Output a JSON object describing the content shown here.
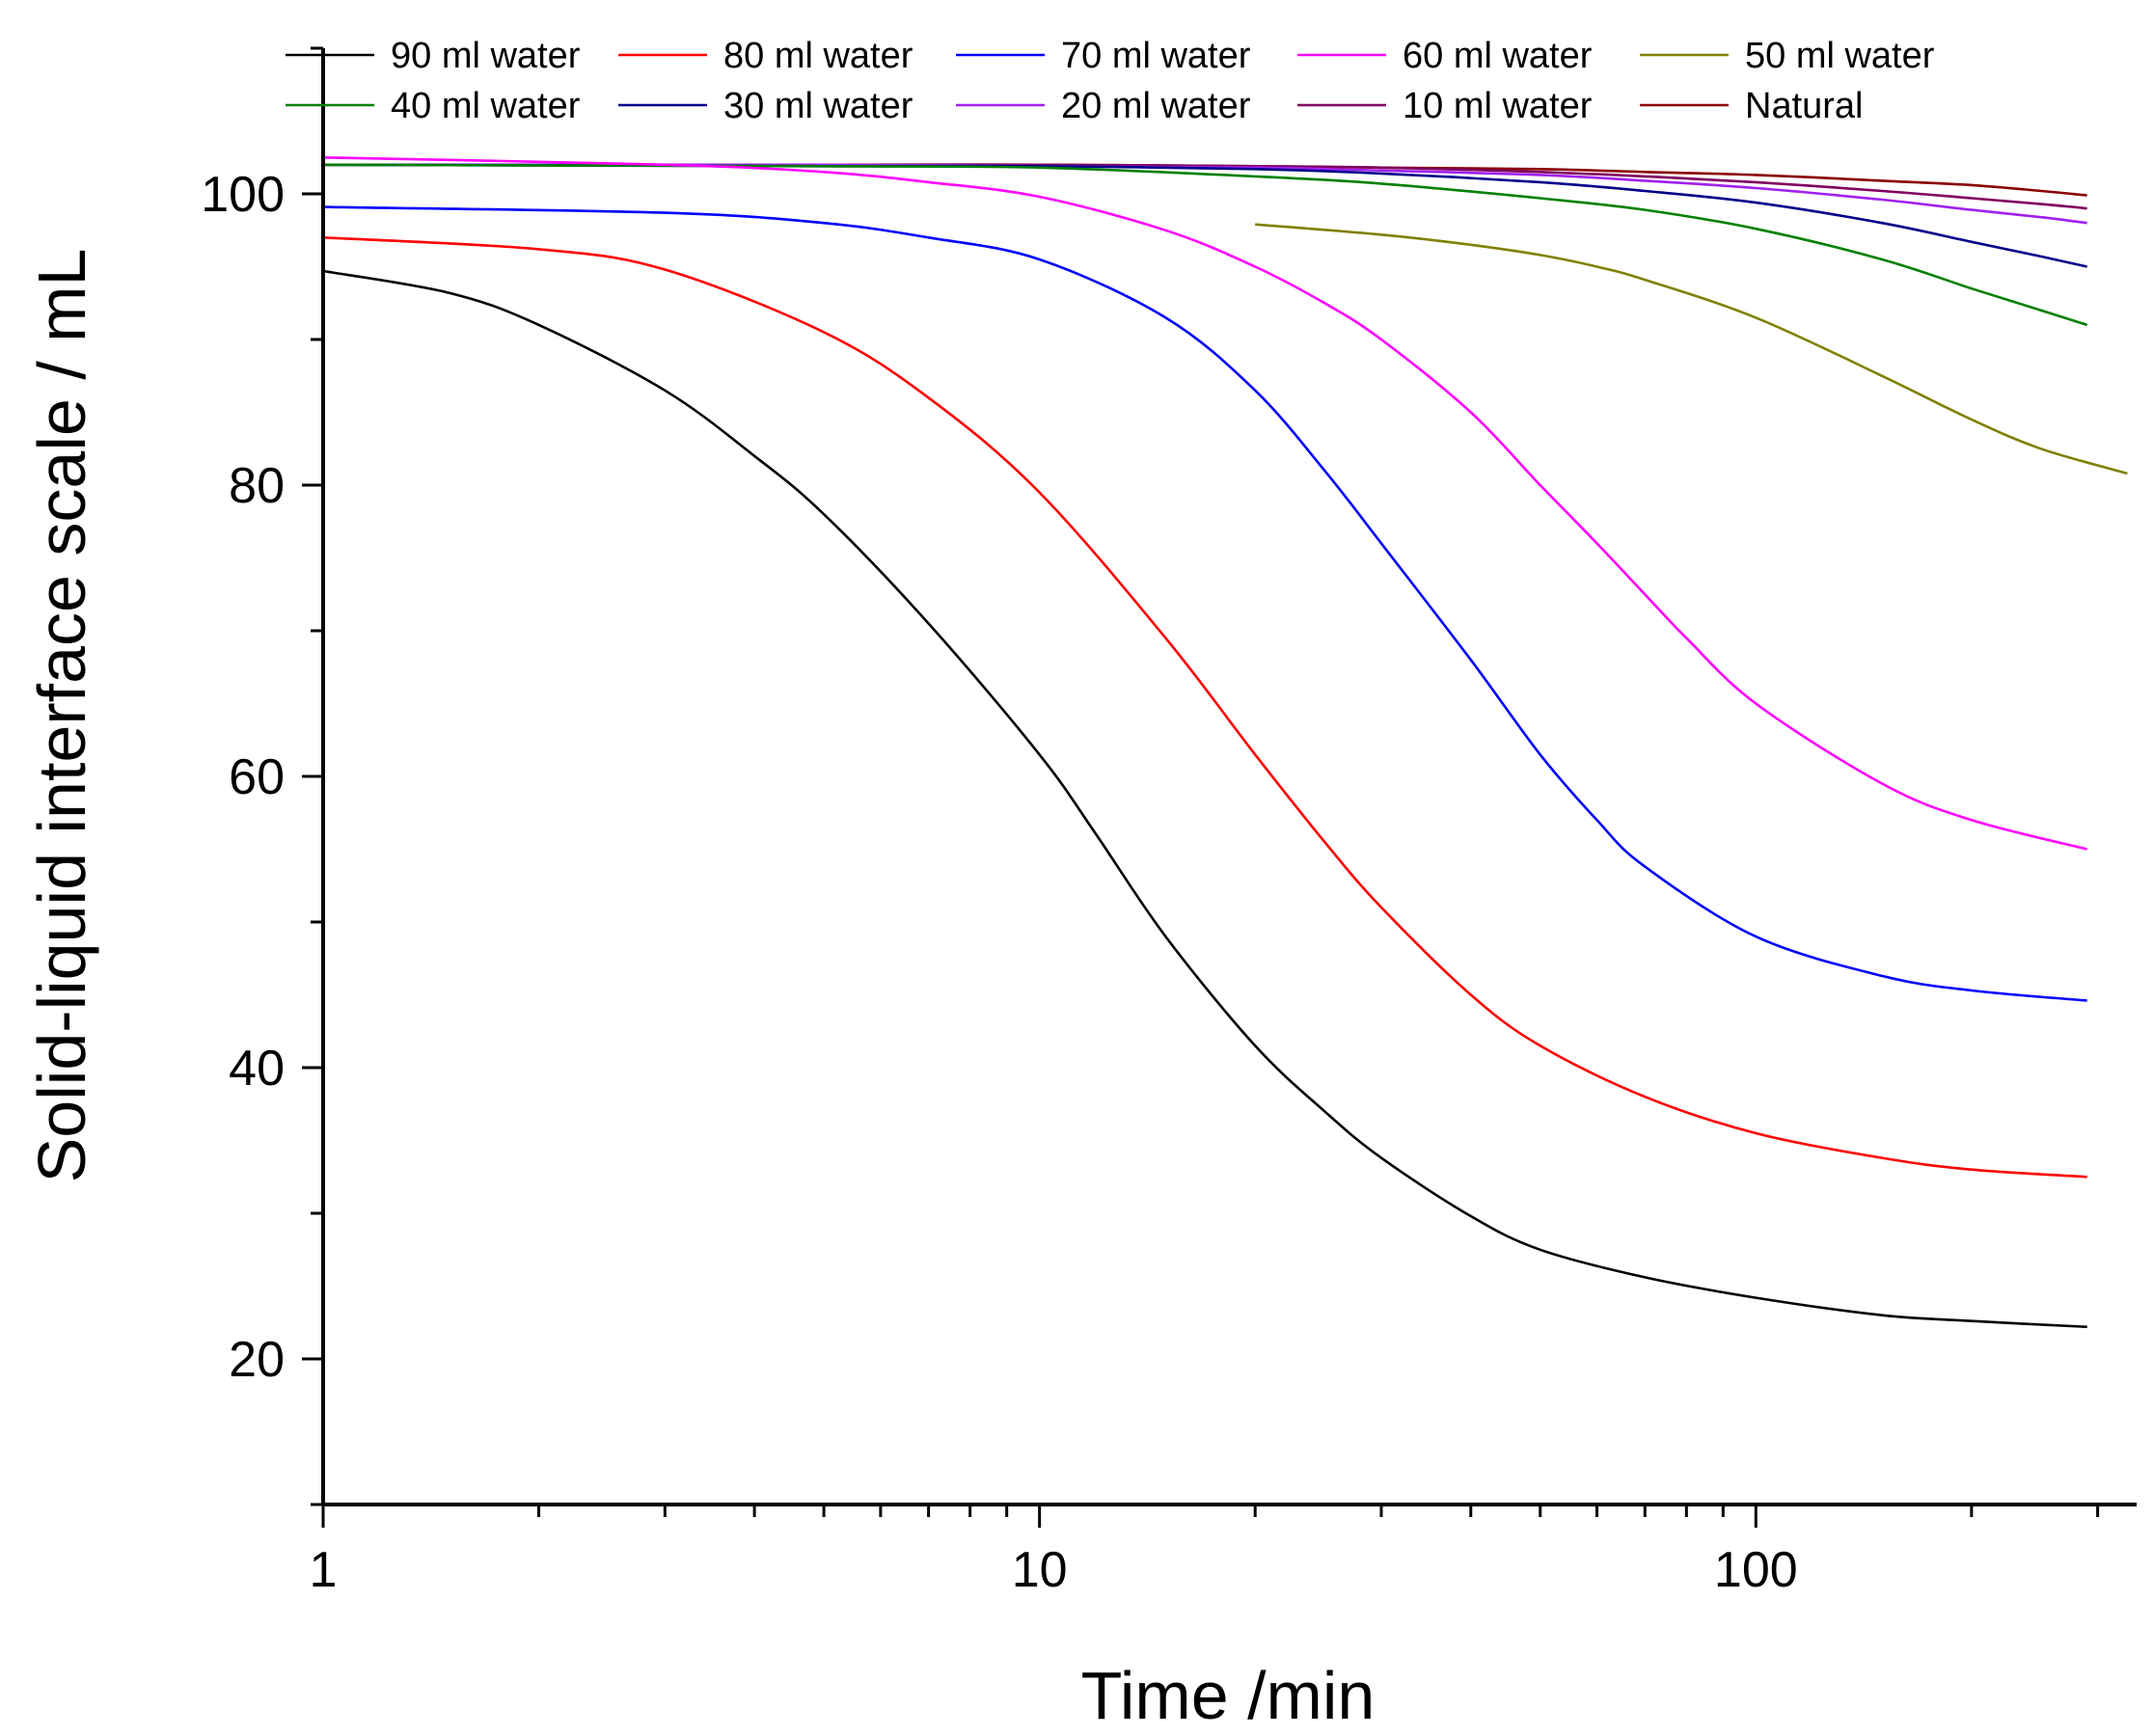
{
  "chart_data": {
    "type": "line",
    "title": "",
    "xlabel": "Time /min",
    "ylabel": "Solid-liquid interface scale / mL",
    "xscale": "log",
    "xlim": [
      1,
      340
    ],
    "ylim": [
      10,
      110
    ],
    "x_ticks": [
      1,
      10,
      100
    ],
    "x_tick_labels": [
      "1",
      "10",
      "100"
    ],
    "y_ticks": [
      20,
      40,
      60,
      80,
      100
    ],
    "y_tick_labels": [
      "20",
      "40",
      "60",
      "80",
      "100"
    ],
    "grid": false,
    "legend": "top, inside plot, 5 columns",
    "series": [
      {
        "name": "90 ml water",
        "color": "#000000",
        "x": [
          1,
          1.5,
          2,
          3,
          4,
          5,
          7,
          10,
          12,
          15,
          20,
          25,
          30,
          40,
          50,
          70,
          100,
          150,
          200,
          290
        ],
        "values": [
          94.7,
          93.2,
          91.0,
          86.5,
          82.0,
          78.0,
          70.5,
          61.5,
          56.0,
          49.0,
          41.5,
          37.0,
          33.8,
          29.8,
          27.5,
          25.6,
          24.2,
          23.0,
          22.6,
          22.2
        ]
      },
      {
        "name": "80 ml water",
        "color": "#ff0000",
        "x": [
          1,
          2,
          3,
          5,
          7,
          10,
          15,
          20,
          25,
          30,
          40,
          50,
          70,
          100,
          150,
          200,
          290
        ],
        "values": [
          97.0,
          96.2,
          94.8,
          90.5,
          86.0,
          79.5,
          69.5,
          61.5,
          55.5,
          51.0,
          45.0,
          41.5,
          38.0,
          35.5,
          33.8,
          33.0,
          32.5
        ]
      },
      {
        "name": "70 ml water",
        "color": "#0000ff",
        "x": [
          1,
          3,
          5,
          7,
          10,
          15,
          20,
          25,
          30,
          40,
          50,
          60,
          70,
          100,
          150,
          200,
          290
        ],
        "values": [
          99.1,
          98.7,
          98.0,
          97.0,
          95.5,
          91.5,
          86.5,
          81.0,
          76.0,
          68.0,
          61.5,
          57.0,
          53.8,
          49.0,
          46.3,
          45.3,
          44.6
        ]
      },
      {
        "name": "60 ml water",
        "color": "#ff00ff",
        "x": [
          1,
          3,
          5,
          7,
          10,
          15,
          20,
          25,
          30,
          40,
          50,
          60,
          70,
          80,
          100,
          150,
          200,
          290
        ],
        "values": [
          102.5,
          102.0,
          101.5,
          100.8,
          99.8,
          97.5,
          95.0,
          92.5,
          90.0,
          85.0,
          80.0,
          76.0,
          72.5,
          69.5,
          65.0,
          59.5,
          57.0,
          55.0
        ]
      },
      {
        "name": "50 ml water",
        "color": "#808000",
        "x": [
          20,
          30,
          40,
          50,
          60,
          70,
          100,
          150,
          200,
          250,
          330
        ],
        "values": [
          97.9,
          97.2,
          96.5,
          95.8,
          95.0,
          94.1,
          91.5,
          87.5,
          84.5,
          82.5,
          80.8
        ]
      },
      {
        "name": "40 ml water",
        "color": "#008000",
        "x": [
          1,
          5,
          10,
          20,
          30,
          50,
          70,
          100,
          150,
          200,
          250,
          290
        ],
        "values": [
          102.0,
          101.9,
          101.8,
          101.2,
          100.7,
          99.7,
          98.9,
          97.6,
          95.5,
          93.5,
          92.0,
          91.0
        ]
      },
      {
        "name": "30 ml water",
        "color": "#00008b",
        "x": [
          1,
          5,
          10,
          20,
          30,
          50,
          70,
          100,
          150,
          200,
          250,
          290
        ],
        "values": [
          102.0,
          101.9,
          101.9,
          101.7,
          101.4,
          100.8,
          100.2,
          99.4,
          98.0,
          96.7,
          95.7,
          95.0
        ]
      },
      {
        "name": "20 ml water",
        "color": "#a020f0",
        "x": [
          1,
          5,
          10,
          20,
          30,
          50,
          70,
          100,
          150,
          200,
          250,
          290
        ],
        "values": [
          102.0,
          102.0,
          101.9,
          101.8,
          101.6,
          101.3,
          100.9,
          100.4,
          99.6,
          98.9,
          98.4,
          98.0
        ]
      },
      {
        "name": "10 ml water",
        "color": "#800060",
        "x": [
          1,
          5,
          10,
          20,
          30,
          50,
          70,
          100,
          150,
          200,
          250,
          290
        ],
        "values": [
          102.0,
          102.0,
          102.0,
          101.9,
          101.8,
          101.5,
          101.2,
          100.8,
          100.2,
          99.7,
          99.3,
          99.0
        ]
      },
      {
        "name": "Natural",
        "color": "#8b0000",
        "x": [
          1,
          5,
          10,
          20,
          30,
          50,
          70,
          100,
          150,
          200,
          250,
          290
        ],
        "values": [
          102.0,
          102.0,
          102.0,
          101.9,
          101.8,
          101.7,
          101.5,
          101.3,
          100.9,
          100.6,
          100.2,
          99.9
        ]
      }
    ]
  }
}
